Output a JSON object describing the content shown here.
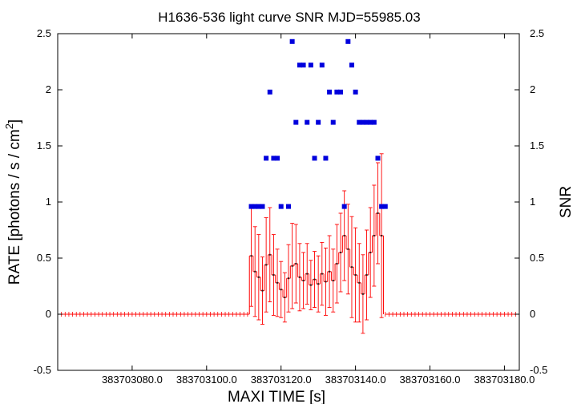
{
  "chart_data": {
    "type": "scatter",
    "title": "H1636-536 light curve  SNR MJD=55985.03",
    "xlabel": "MAXI TIME [s]",
    "ylabel": "RATE [photons / s / cm",
    "ylabel_sup": "2",
    "ylabel_end": "]",
    "y2label": "SNR",
    "xlim": [
      383703060,
      383703184
    ],
    "ylim": [
      -0.5,
      2.5
    ],
    "y2lim": [
      -0.5,
      2.5
    ],
    "xticks": [
      {
        "value": 383703080,
        "label": "383703080.0"
      },
      {
        "value": 383703100,
        "label": "383703100.0"
      },
      {
        "value": 383703120,
        "label": "383703120.0"
      },
      {
        "value": 383703140,
        "label": "383703140.0"
      },
      {
        "value": 383703160,
        "label": "383703160.0"
      },
      {
        "value": 383703180,
        "label": "383703180.0"
      }
    ],
    "yticks": [
      {
        "value": -0.5,
        "label": "-0.5"
      },
      {
        "value": 0,
        "label": "0"
      },
      {
        "value": 0.5,
        "label": "0.5"
      },
      {
        "value": 1,
        "label": "1"
      },
      {
        "value": 1.5,
        "label": "1.5"
      },
      {
        "value": 2,
        "label": "2"
      },
      {
        "value": 2.5,
        "label": "2.5"
      }
    ],
    "y2ticks": [
      {
        "value": -0.5,
        "label": "-0.5"
      },
      {
        "value": 0,
        "label": "0"
      },
      {
        "value": 0.5,
        "label": "0.5"
      },
      {
        "value": 1,
        "label": "1"
      },
      {
        "value": 1.5,
        "label": "1.5"
      },
      {
        "value": 2,
        "label": "2"
      },
      {
        "value": 2.5,
        "label": "2.5"
      }
    ],
    "grid": false,
    "colors": {
      "rate": "#ff0000",
      "snr": "#0000dd"
    },
    "rate_zero_ranges": [
      [
        383703060,
        383703111.5
      ],
      [
        383703148,
        383703184
      ]
    ],
    "rate_zero_err": 0.01,
    "rate": [
      {
        "x": 383703112,
        "y": 0.52,
        "err": 0.45
      },
      {
        "x": 383703113,
        "y": 0.38,
        "err": 0.4
      },
      {
        "x": 383703114,
        "y": 0.33,
        "err": 0.38
      },
      {
        "x": 383703115,
        "y": 0.21,
        "err": 0.3
      },
      {
        "x": 383703116,
        "y": 0.44,
        "err": 0.42
      },
      {
        "x": 383703117,
        "y": 0.53,
        "err": 0.42
      },
      {
        "x": 383703118,
        "y": 0.35,
        "err": 0.36
      },
      {
        "x": 383703119,
        "y": 0.28,
        "err": 0.3
      },
      {
        "x": 383703120,
        "y": 0.22,
        "err": 0.25
      },
      {
        "x": 383703121,
        "y": 0.15,
        "err": 0.22
      },
      {
        "x": 383703122,
        "y": 0.32,
        "err": 0.3
      },
      {
        "x": 383703123,
        "y": 0.43,
        "err": 0.38
      },
      {
        "x": 383703124,
        "y": 0.45,
        "err": 0.35
      },
      {
        "x": 383703125,
        "y": 0.33,
        "err": 0.3
      },
      {
        "x": 383703126,
        "y": 0.3,
        "err": 0.25
      },
      {
        "x": 383703127,
        "y": 0.36,
        "err": 0.27
      },
      {
        "x": 383703128,
        "y": 0.26,
        "err": 0.22
      },
      {
        "x": 383703129,
        "y": 0.31,
        "err": 0.25
      },
      {
        "x": 383703130,
        "y": 0.27,
        "err": 0.25
      },
      {
        "x": 383703131,
        "y": 0.36,
        "err": 0.28
      },
      {
        "x": 383703132,
        "y": 0.29,
        "err": 0.3
      },
      {
        "x": 383703133,
        "y": 0.38,
        "err": 0.32
      },
      {
        "x": 383703134,
        "y": 0.3,
        "err": 0.28
      },
      {
        "x": 383703135,
        "y": 0.45,
        "err": 0.35
      },
      {
        "x": 383703136,
        "y": 0.55,
        "err": 0.35
      },
      {
        "x": 383703137,
        "y": 0.7,
        "err": 0.4
      },
      {
        "x": 383703138,
        "y": 0.58,
        "err": 0.4
      },
      {
        "x": 383703139,
        "y": 0.42,
        "err": 0.45
      },
      {
        "x": 383703140,
        "y": 0.35,
        "err": 0.42
      },
      {
        "x": 383703141,
        "y": 0.28,
        "err": 0.35
      },
      {
        "x": 383703142,
        "y": 0.18,
        "err": 0.35
      },
      {
        "x": 383703143,
        "y": 0.35,
        "err": 0.4
      },
      {
        "x": 383703144,
        "y": 0.55,
        "err": 0.4
      },
      {
        "x": 383703145,
        "y": 0.7,
        "err": 0.45
      },
      {
        "x": 383703146,
        "y": 0.9,
        "err": 0.45
      },
      {
        "x": 383703147,
        "y": 0.7,
        "err": 0.73
      }
    ],
    "snr": [
      {
        "x": 383703112,
        "y": 0.96
      },
      {
        "x": 383703113,
        "y": 0.96
      },
      {
        "x": 383703114,
        "y": 0.96
      },
      {
        "x": 383703115,
        "y": 0.96
      },
      {
        "x": 383703116,
        "y": 1.39
      },
      {
        "x": 383703117,
        "y": 1.98
      },
      {
        "x": 383703118,
        "y": 1.39
      },
      {
        "x": 383703119,
        "y": 1.39
      },
      {
        "x": 383703120,
        "y": 0.96
      },
      {
        "x": 383703122,
        "y": 0.96
      },
      {
        "x": 383703123,
        "y": 2.43
      },
      {
        "x": 383703124,
        "y": 1.71
      },
      {
        "x": 383703125,
        "y": 2.22
      },
      {
        "x": 383703126,
        "y": 2.22
      },
      {
        "x": 383703127,
        "y": 1.71
      },
      {
        "x": 383703128,
        "y": 2.22
      },
      {
        "x": 383703129,
        "y": 1.39
      },
      {
        "x": 383703130,
        "y": 1.71
      },
      {
        "x": 383703131,
        "y": 2.22
      },
      {
        "x": 383703132,
        "y": 1.39
      },
      {
        "x": 383703133,
        "y": 1.98
      },
      {
        "x": 383703134,
        "y": 1.71
      },
      {
        "x": 383703135,
        "y": 1.98
      },
      {
        "x": 383703136,
        "y": 1.98
      },
      {
        "x": 383703137,
        "y": 0.96
      },
      {
        "x": 383703138,
        "y": 2.43
      },
      {
        "x": 383703139,
        "y": 2.22
      },
      {
        "x": 383703140,
        "y": 1.98
      },
      {
        "x": 383703141,
        "y": 1.71
      },
      {
        "x": 383703142,
        "y": 1.71
      },
      {
        "x": 383703143,
        "y": 1.71
      },
      {
        "x": 383703144,
        "y": 1.71
      },
      {
        "x": 383703145,
        "y": 1.71
      },
      {
        "x": 383703146,
        "y": 1.39
      },
      {
        "x": 383703147,
        "y": 0.96
      },
      {
        "x": 383703148,
        "y": 0.96
      }
    ]
  }
}
